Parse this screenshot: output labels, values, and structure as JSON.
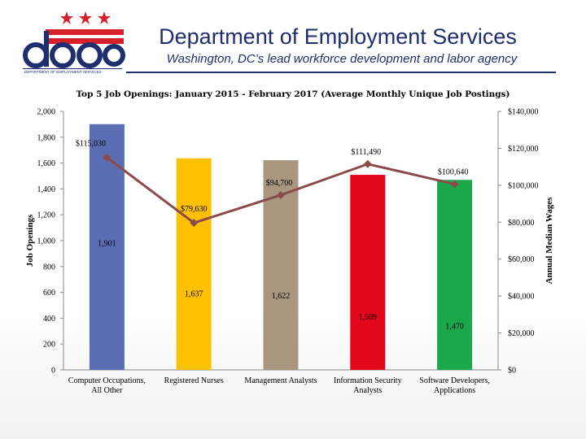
{
  "header": {
    "title": "Department of Employment Services",
    "subtitle": "Washington, DC’s lead workforce development and labor agency",
    "logo_text": "does",
    "logo_caption": "DEPARTMENT OF EMPLOYMENT SERVICES"
  },
  "colors": {
    "brand_navy": "#1e2e6e",
    "brand_red": "#d6202a",
    "line": "#8c4b4b"
  },
  "chart_data": {
    "type": "bar",
    "title": "Top 5 Job Openings: January 2015 - February 2017 (Average Monthly Unique Job Postings)",
    "ylabel": "Job Openings",
    "y2label": "Annual Median Wages",
    "ylim": [
      0,
      2000
    ],
    "y2lim": [
      0,
      140000
    ],
    "yticks": [
      "0",
      "200",
      "400",
      "600",
      "800",
      "1,000",
      "1,200",
      "1,400",
      "1,600",
      "1,800",
      "2,000"
    ],
    "y2ticks": [
      "$0",
      "$20,000",
      "$40,000",
      "$60,000",
      "$80,000",
      "$100,000",
      "$120,000",
      "$140,000"
    ],
    "categories": [
      [
        "Computer Occupations,",
        "All Other"
      ],
      [
        "Registered Nurses"
      ],
      [
        "Management Analysts"
      ],
      [
        "Information Security",
        "Analysts"
      ],
      [
        "Software Developers,",
        "Applications"
      ]
    ],
    "series": [
      {
        "name": "Job Openings",
        "type": "bar",
        "axis": "left",
        "values": [
          1901,
          1637,
          1622,
          1509,
          1470
        ],
        "labels": [
          "1,901",
          "1,637",
          "1,622",
          "1,509",
          "1,470"
        ],
        "colors": [
          "#5b6db3",
          "#ffc000",
          "#a8977e",
          "#e3071b",
          "#1aa84b"
        ]
      },
      {
        "name": "Annual Median Wages",
        "type": "line",
        "axis": "right",
        "values": [
          115030,
          79630,
          94700,
          111490,
          100640
        ],
        "labels": [
          "$115,030",
          "$79,630",
          "$94,700",
          "$111,490",
          "$100,640"
        ]
      }
    ]
  }
}
